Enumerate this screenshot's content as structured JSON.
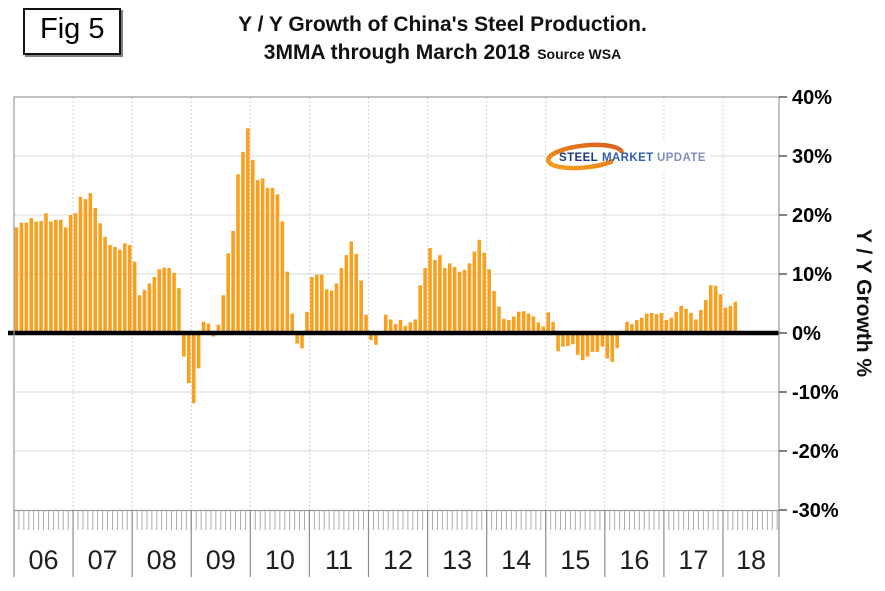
{
  "header": {
    "fig_label": "Fig 5",
    "title_line1": "Y / Y Growth of China's Steel Production.",
    "title_line2": "3MMA through March 2018",
    "source_note": "Source WSA"
  },
  "logo": {
    "word1": "STEEL",
    "word2": "MARKET",
    "word3": "UPDATE"
  },
  "y_axis": {
    "title": "Y / Y Growth %",
    "tick_labels": [
      "40%",
      "30%",
      "20%",
      "10%",
      "0%",
      "-10%",
      "-20%",
      "-30%"
    ],
    "tick_values": [
      40,
      30,
      20,
      10,
      0,
      -10,
      -20,
      -30
    ]
  },
  "x_axis": {
    "year_labels": [
      "06",
      "07",
      "08",
      "09",
      "10",
      "11",
      "12",
      "13",
      "14",
      "15",
      "16",
      "17",
      "18"
    ]
  },
  "colors": {
    "bar": "#F9A11E",
    "zero_line": "#000000",
    "gridline": "#D9D9D9",
    "year_gridline": "#C3C3C3",
    "frame": "#999999",
    "minor_tick": "#A3A3A3",
    "logo_navy": "#1D3A7B",
    "logo_blue": "#2F5EA9",
    "logo_lightblue": "#7C92BE",
    "logo_orange": "#E2661C"
  },
  "chart_data": {
    "type": "bar",
    "title": "Y / Y Growth of China's Steel Production. 3MMA through March 2018",
    "source": "Source WSA",
    "ylabel": "Y / Y Growth %",
    "ylim": [
      -30,
      40
    ],
    "y_tick_step_pct": 10,
    "x_range": "Jan 2006 - Mar 2018 (monthly, 3-month moving average, % y/y)",
    "grid": "horizontal solid every 10%, dashed vertical at year boundaries",
    "legend": "none",
    "values_by_year": {
      "2006": [
        17.9,
        18.7,
        18.7,
        19.5,
        18.9,
        19.0,
        20.3,
        18.9,
        19.2,
        19.2,
        17.9,
        20.0
      ],
      "2007": [
        20.3,
        23.1,
        22.7,
        23.7,
        21.2,
        18.6,
        16.3,
        14.9,
        14.6,
        14.1,
        15.2,
        14.9
      ],
      "2008": [
        12.1,
        6.4,
        7.3,
        8.4,
        9.5,
        10.8,
        11.1,
        11.0,
        10.2,
        7.6,
        -4.0,
        -8.5
      ],
      "2009": [
        -11.9,
        -6.0,
        1.9,
        1.6,
        -0.6,
        1.4,
        6.4,
        13.5,
        17.3,
        26.9,
        30.7,
        34.7
      ],
      "2010": [
        29.3,
        25.9,
        26.2,
        24.6,
        24.6,
        23.5,
        18.9,
        10.4,
        3.3,
        -1.8,
        -2.6,
        3.6
      ],
      "2011": [
        9.5,
        9.9,
        9.9,
        7.4,
        7.2,
        8.4,
        11.0,
        13.2,
        15.5,
        13.4,
        8.9,
        3.1
      ],
      "2012": [
        -1.2,
        -2.0,
        0.3,
        3.1,
        2.3,
        1.5,
        2.2,
        1.2,
        1.8,
        2.3,
        8.1,
        11.0
      ],
      "2013": [
        14.4,
        12.4,
        13.2,
        11.0,
        11.8,
        11.2,
        10.4,
        10.7,
        11.8,
        13.8,
        15.8,
        13.6
      ],
      "2014": [
        10.8,
        7.1,
        4.5,
        2.4,
        2.2,
        2.8,
        3.6,
        3.7,
        3.3,
        2.8,
        1.8,
        1.1
      ],
      "2015": [
        3.5,
        1.9,
        -3.1,
        -2.3,
        -2.2,
        -1.9,
        -3.7,
        -4.6,
        -4.0,
        -3.2,
        -3.2,
        -2.3
      ],
      "2016": [
        -4.3,
        -4.9,
        -2.6,
        -0.3,
        1.9,
        1.5,
        2.2,
        2.6,
        3.3,
        3.4,
        3.2,
        3.4
      ],
      "2017": [
        2.2,
        2.6,
        3.6,
        4.6,
        4.1,
        3.4,
        2.3,
        3.9,
        5.6,
        8.1,
        8.0,
        6.6
      ],
      "2018": [
        4.3,
        4.6,
        5.3
      ]
    }
  }
}
